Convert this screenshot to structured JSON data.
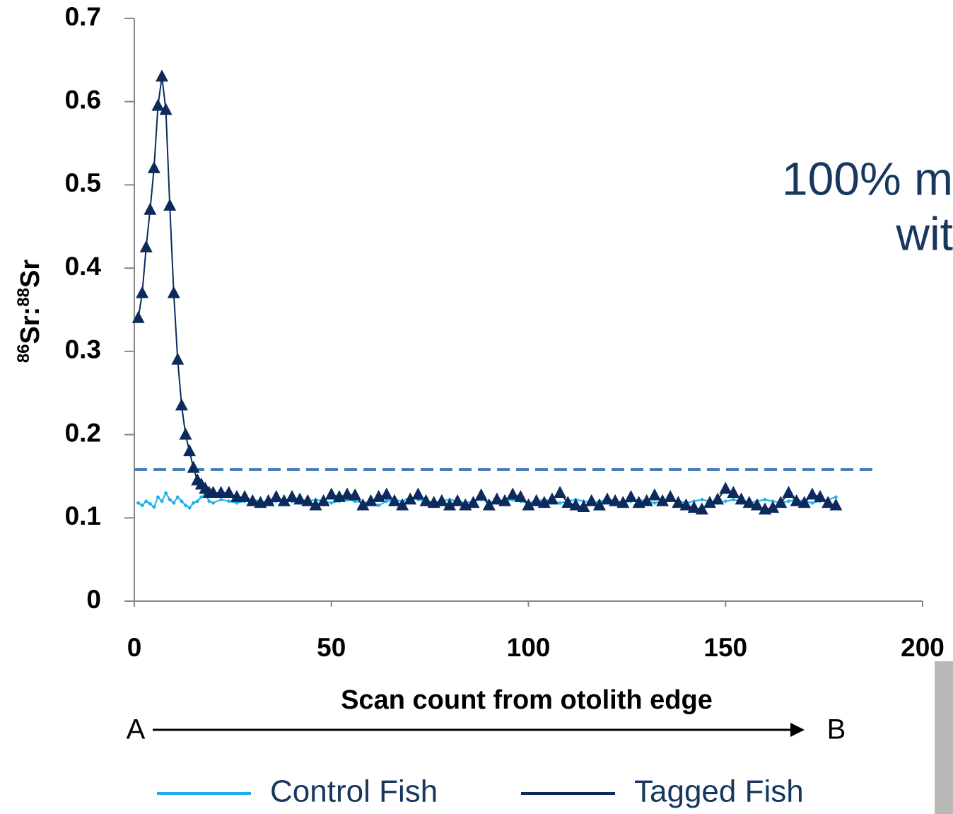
{
  "chart_data": {
    "type": "line",
    "y_label": {
      "iso1": "86",
      "el1": "Sr:",
      "iso2": "88",
      "el2": "Sr"
    },
    "x_label": "Scan count from otolith edge",
    "x": [
      1,
      2,
      3,
      4,
      5,
      6,
      7,
      8,
      9,
      10,
      11,
      12,
      13,
      14,
      15,
      16,
      17,
      18,
      19,
      20,
      22,
      24,
      26,
      28,
      30,
      32,
      34,
      36,
      38,
      40,
      42,
      44,
      46,
      48,
      50,
      52,
      54,
      56,
      58,
      60,
      62,
      64,
      66,
      68,
      70,
      72,
      74,
      76,
      78,
      80,
      82,
      84,
      86,
      88,
      90,
      92,
      94,
      96,
      98,
      100,
      102,
      104,
      106,
      108,
      110,
      112,
      114,
      116,
      118,
      120,
      122,
      124,
      126,
      128,
      130,
      132,
      134,
      136,
      138,
      140,
      142,
      144,
      146,
      148,
      150,
      152,
      154,
      156,
      158,
      160,
      162,
      164,
      166,
      168,
      170,
      172,
      174,
      176,
      178
    ],
    "series": [
      {
        "name": "Control Fish",
        "color": "#1ab0e8",
        "marker": "diamond",
        "values": [
          0.118,
          0.115,
          0.12,
          0.117,
          0.113,
          0.125,
          0.12,
          0.13,
          0.122,
          0.118,
          0.125,
          0.12,
          0.115,
          0.112,
          0.118,
          0.12,
          0.125,
          0.128,
          0.12,
          0.118,
          0.122,
          0.12,
          0.118,
          0.12,
          0.122,
          0.12,
          0.118,
          0.12,
          0.122,
          0.12,
          0.118,
          0.12,
          0.122,
          0.12,
          0.118,
          0.12,
          0.122,
          0.12,
          0.118,
          0.12,
          0.115,
          0.12,
          0.122,
          0.12,
          0.125,
          0.122,
          0.12,
          0.118,
          0.12,
          0.122,
          0.12,
          0.118,
          0.12,
          0.122,
          0.12,
          0.118,
          0.12,
          0.122,
          0.12,
          0.118,
          0.12,
          0.122,
          0.12,
          0.118,
          0.12,
          0.122,
          0.12,
          0.118,
          0.12,
          0.122,
          0.12,
          0.118,
          0.12,
          0.122,
          0.12,
          0.118,
          0.12,
          0.122,
          0.12,
          0.118,
          0.12,
          0.122,
          0.12,
          0.118,
          0.12,
          0.122,
          0.12,
          0.118,
          0.12,
          0.122,
          0.12,
          0.118,
          0.12,
          0.122,
          0.12,
          0.118,
          0.12,
          0.122,
          0.125
        ]
      },
      {
        "name": "Tagged Fish",
        "color": "#0d2a5c",
        "marker": "triangle",
        "values": [
          0.34,
          0.37,
          0.425,
          0.47,
          0.52,
          0.595,
          0.63,
          0.59,
          0.475,
          0.37,
          0.29,
          0.235,
          0.2,
          0.18,
          0.16,
          0.145,
          0.14,
          0.135,
          0.13,
          0.13,
          0.13,
          0.13,
          0.125,
          0.125,
          0.12,
          0.118,
          0.12,
          0.125,
          0.12,
          0.125,
          0.122,
          0.12,
          0.115,
          0.12,
          0.128,
          0.125,
          0.128,
          0.127,
          0.115,
          0.12,
          0.125,
          0.128,
          0.12,
          0.115,
          0.122,
          0.128,
          0.12,
          0.118,
          0.12,
          0.115,
          0.12,
          0.115,
          0.118,
          0.127,
          0.115,
          0.122,
          0.12,
          0.128,
          0.125,
          0.115,
          0.12,
          0.118,
          0.122,
          0.13,
          0.118,
          0.115,
          0.113,
          0.12,
          0.115,
          0.122,
          0.12,
          0.118,
          0.125,
          0.118,
          0.12,
          0.127,
          0.12,
          0.125,
          0.118,
          0.115,
          0.112,
          0.11,
          0.118,
          0.122,
          0.135,
          0.13,
          0.122,
          0.118,
          0.115,
          0.11,
          0.112,
          0.118,
          0.13,
          0.12,
          0.118,
          0.128,
          0.125,
          0.118,
          0.115
        ]
      }
    ],
    "reference_line": {
      "y": 0.158,
      "x": [
        0,
        188
      ],
      "color": "#4a7ebb",
      "dashed": true
    },
    "xlim": [
      0,
      200
    ],
    "xticks": [
      0,
      50,
      100,
      150,
      200
    ],
    "ylim": [
      0,
      0.7
    ],
    "yticks": [
      0,
      0.1,
      0.2,
      0.3,
      0.4,
      0.5,
      0.6,
      0.7
    ],
    "grid": false,
    "direction": {
      "start": "A",
      "end": "B"
    },
    "slide_text": [
      "100% m",
      "wit"
    ]
  }
}
